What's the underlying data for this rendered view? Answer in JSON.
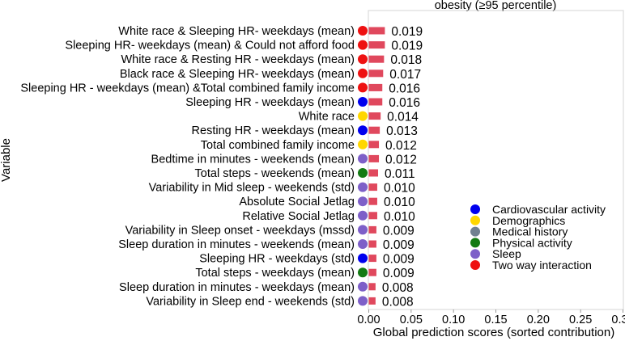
{
  "chart_data": {
    "type": "bar",
    "orientation": "horizontal",
    "title": "obesity (≥95 percentile)",
    "xlabel": "Global prediction scores (sorted contribution)",
    "ylabel": "Variable",
    "xlim": [
      0.0,
      0.3
    ],
    "xticks": [
      "0.00",
      "0.05",
      "0.10",
      "0.15",
      "0.20",
      "0.25",
      "0.30"
    ],
    "xtick_values": [
      0.0,
      0.05,
      0.1,
      0.15,
      0.2,
      0.25,
      0.3
    ],
    "grid": false,
    "bar_color": "#e0485d",
    "legend_position": "right",
    "categories": [
      "White race  & Sleeping  HR- weekdays (mean)",
      "Sleeping  HR- weekdays (mean) & Could not afford food",
      "White race & Resting HR - weekdays (mean)",
      "Black race  & Sleeping  HR- weekdays (mean)",
      "Sleeping HR - weekdays (mean) &Total combined family income",
      "Sleeping HR - weekdays (mean)",
      "White race",
      "Resting HR - weekdays (mean)",
      "Total combined family income",
      "Bedtime in minutes - weekends (mean)",
      "Total steps - weekends (mean)",
      "Variability in Mid sleep - weekends (std)",
      "Absolute Social Jetlag",
      "Relative Social Jetlag",
      "Variability in Sleep onset - weekdays (mssd)",
      "Sleep duration in minutes - weekends (mean)",
      "Sleeping HR - weekdays (std)",
      "Total steps - weekdays (mean)",
      "Sleep duration in minutes - weekdays (mean)",
      "Variability in Sleep end - weekends (std)"
    ],
    "values": [
      0.019,
      0.019,
      0.018,
      0.017,
      0.016,
      0.016,
      0.014,
      0.013,
      0.012,
      0.012,
      0.011,
      0.01,
      0.01,
      0.01,
      0.009,
      0.009,
      0.009,
      0.009,
      0.008,
      0.008
    ],
    "value_labels": [
      "0.019",
      "0.019",
      "0.018",
      "0.017",
      "0.016",
      "0.016",
      "0.014",
      "0.013",
      "0.012",
      "0.012",
      "0.011",
      "0.010",
      "0.010",
      "0.010",
      "0.009",
      "0.009",
      "0.009",
      "0.009",
      "0.008",
      "0.008"
    ],
    "groups": [
      "Two way interaction",
      "Two way interaction",
      "Two way interaction",
      "Two way interaction",
      "Two way interaction",
      "Cardiovascular activity",
      "Demographics",
      "Cardiovascular activity",
      "Demographics",
      "Sleep",
      "Physical activity",
      "Sleep",
      "Sleep",
      "Sleep",
      "Sleep",
      "Sleep",
      "Cardiovascular activity",
      "Physical activity",
      "Sleep",
      "Sleep"
    ],
    "legend": [
      {
        "name": "Cardiovascular activity",
        "color": "#0000ee"
      },
      {
        "name": "Demographics",
        "color": "#ffd700"
      },
      {
        "name": "Medical history",
        "color": "#708090"
      },
      {
        "name": "Physical activity",
        "color": "#137a13"
      },
      {
        "name": "Sleep",
        "color": "#7d5fc8"
      },
      {
        "name": "Two way interaction",
        "color": "#ee1111"
      }
    ]
  }
}
